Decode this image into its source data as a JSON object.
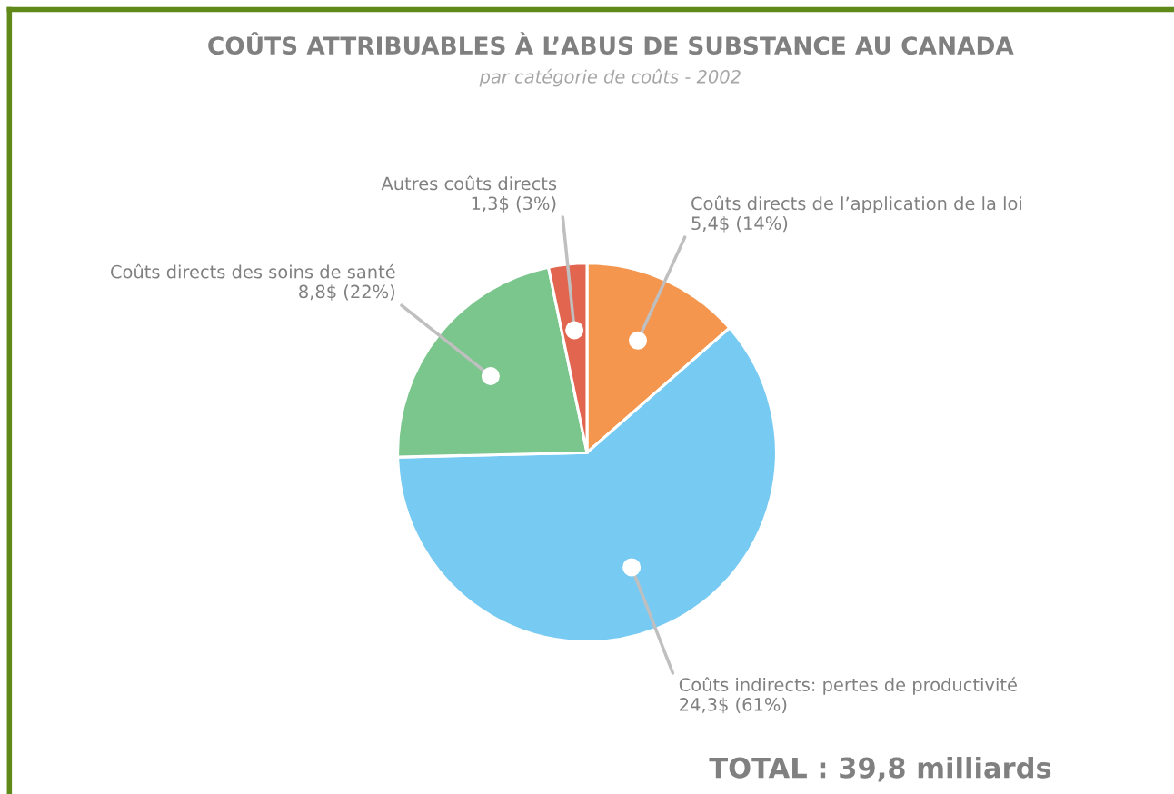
{
  "chart_data": {
    "type": "pie",
    "title": "COÛTS ATTRIBUABLES À L’ABUS DE SUBSTANCE AU CANADA",
    "subtitle": "par catégorie de coûts - 2002",
    "categories": [
      "Coûts directs de l’application de la loi",
      "Coûts indirects: pertes de productivité",
      "Coûts directs des soins de santé",
      "Autres coûts directs"
    ],
    "values": [
      5.4,
      24.3,
      8.8,
      1.3
    ],
    "value_labels": [
      "5,4$ (14%)",
      "24,3$ (61%)",
      "8,8$ (22%)",
      "1,3$ (3%)"
    ],
    "colors": [
      "#f5964f",
      "#77caf2",
      "#7bc68d",
      "#e2654f"
    ],
    "annotations": [
      "TOTAL : 39,8 milliards"
    ]
  }
}
